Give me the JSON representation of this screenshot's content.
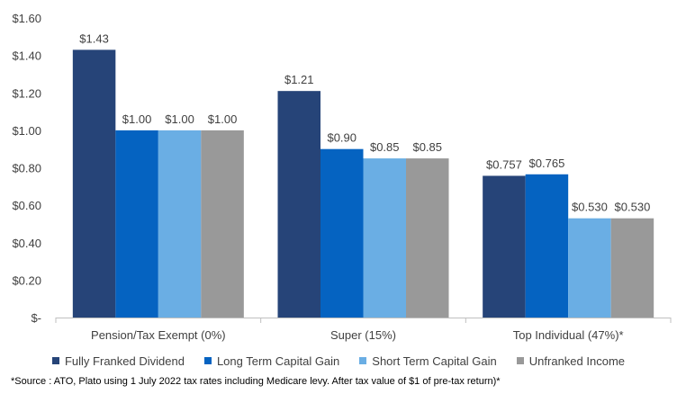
{
  "chart_data": {
    "type": "bar",
    "categories": [
      "Pension/Tax Exempt (0%)",
      "Super (15%)",
      "Top Individual (47%)*"
    ],
    "series": [
      {
        "name": "Fully Franked Dividend",
        "color": "#264478",
        "values": [
          1.43,
          1.21,
          0.757
        ],
        "labels": [
          "$1.43",
          "$1.21",
          "$0.757"
        ]
      },
      {
        "name": "Long Term Capital Gain",
        "color": "#0563c1",
        "values": [
          1.0,
          0.9,
          0.765
        ],
        "labels": [
          "$1.00",
          "$0.90",
          "$0.765"
        ]
      },
      {
        "name": "Short Term Capital Gain",
        "color": "#6aaee4",
        "values": [
          1.0,
          0.85,
          0.53
        ],
        "labels": [
          "$1.00",
          "$0.85",
          "$0.530"
        ]
      },
      {
        "name": "Unfranked Income",
        "color": "#999999",
        "values": [
          1.0,
          0.85,
          0.53
        ],
        "labels": [
          "$1.00",
          "$0.85",
          "$0.530"
        ]
      }
    ],
    "ylim": [
      0,
      1.6
    ],
    "yticks": [
      0,
      0.2,
      0.4,
      0.6,
      0.8,
      1.0,
      1.2,
      1.4,
      1.6
    ],
    "ytick_labels": [
      "$-",
      "$0.20",
      "$0.40",
      "$0.60",
      "$0.80",
      "$1.00",
      "$1.20",
      "$1.40",
      "$1.60"
    ],
    "grid": false,
    "legend_position": "bottom",
    "title": "",
    "xlabel": "",
    "ylabel": ""
  },
  "source_note": "*Source : ATO, Plato using  1 July 2022 tax rates including Medicare levy.  After tax value of $1 of pre-tax return)*"
}
